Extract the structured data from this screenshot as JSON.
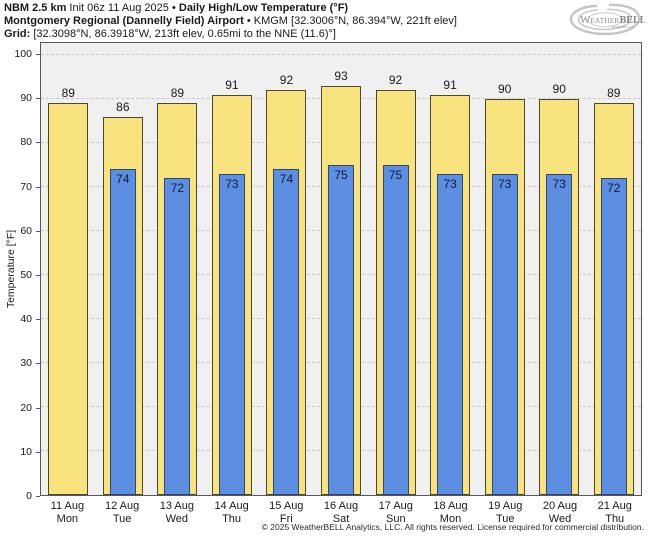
{
  "header": {
    "l1_bold1": "NBM 2.5 km",
    "l1_regular": " Init 06z 11 Aug 2025 • ",
    "l1_bold2": "Daily High/Low Temperature (°F)",
    "l2_bold": "Montgomery Regional (Dannelly Field) Airport",
    "l2_regular": " • KMGM [32.3006°N, 86.394°W, 221ft elev]",
    "l3_bold": "Grid:",
    "l3_regular": " [32.3098°N, 86.3918°W, 213ft elev, 0.65mi to the NNE (11.6)°]"
  },
  "logo": {
    "part1": "W",
    "part2": "EATHER",
    "part3": "BELL",
    "sub": "Analytics LLC"
  },
  "colors": {
    "high_fill": "#F8E37F",
    "high_border": "#4d4a2c",
    "low_fill": "#5C8EE2",
    "low_border": "#2f4470",
    "plot_bg": "#f0f0f0",
    "grid": "#c9c9c9"
  },
  "chart_data": {
    "type": "bar",
    "title": "NBM 2.5 km Daily High/Low Temperature (°F) — Montgomery Regional (Dannelly Field) Airport KMGM",
    "ylabel": "Temperature [°F]",
    "ylim": [
      0,
      100
    ],
    "yticks": [
      0,
      10,
      20,
      30,
      40,
      50,
      60,
      70,
      80,
      90,
      100
    ],
    "grid": true,
    "legend_position": "none",
    "categories": [
      "11 Aug",
      "12 Aug",
      "13 Aug",
      "14 Aug",
      "15 Aug",
      "16 Aug",
      "17 Aug",
      "18 Aug",
      "19 Aug",
      "20 Aug",
      "21 Aug"
    ],
    "category_days": [
      "Mon",
      "Tue",
      "Wed",
      "Thu",
      "Fri",
      "Sat",
      "Sun",
      "Mon",
      "Tue",
      "Wed",
      "Thu"
    ],
    "series": [
      {
        "name": "High",
        "values": [
          89,
          86,
          89,
          91,
          92,
          93,
          92,
          91,
          90,
          90,
          89
        ]
      },
      {
        "name": "Low",
        "values": [
          null,
          74,
          72,
          73,
          74,
          75,
          75,
          73,
          73,
          73,
          72
        ]
      }
    ]
  },
  "footer": "© 2025 WeatherBELL Analytics, LLC. All rights reserved. License required for commercial distribution."
}
